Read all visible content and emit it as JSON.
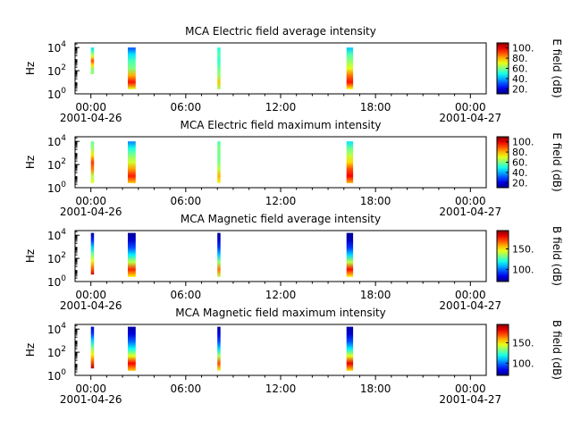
{
  "chart_data": [
    {
      "type": "heatmap",
      "title": "MCA  Electric field average intensity",
      "ylabel": "Hz",
      "colorbar_label": "E field (dB)",
      "colorbar_ticks": [
        "20.",
        "40.",
        "60.",
        "80.",
        "100."
      ],
      "colorbar_range": [
        10,
        110
      ],
      "y_scale": "log",
      "y_ticks": [
        {
          "base": "10",
          "exp": "0"
        },
        {
          "base": "10",
          "exp": "2"
        },
        {
          "base": "10",
          "exp": "4"
        }
      ],
      "ylim_exp": [
        0,
        4.4
      ],
      "x_ticks": [
        "00:00",
        "06:00",
        "12:00",
        "18:00",
        "00:00"
      ],
      "x_dates": [
        "2001-04-26",
        "2001-04-27"
      ],
      "xlim_hours": [
        -1,
        25
      ],
      "segments": [
        {
          "start": "00:00",
          "end": "00:05",
          "ymin_exp": 1.7,
          "ymax_exp": 4.0,
          "profile": [
            62,
            60,
            75,
            90,
            70,
            55,
            45
          ]
        },
        {
          "start": "02:20",
          "end": "02:50",
          "ymin_exp": 0.4,
          "ymax_exp": 4.0,
          "profile": [
            70,
            96,
            80,
            60,
            55,
            45,
            30
          ]
        },
        {
          "start": "08:00",
          "end": "08:10",
          "ymin_exp": 0.4,
          "ymax_exp": 4.0,
          "profile": [
            62,
            78,
            62,
            58,
            52,
            55,
            50
          ]
        },
        {
          "start": "16:10",
          "end": "16:35",
          "ymin_exp": 0.4,
          "ymax_exp": 4.0,
          "profile": [
            72,
            96,
            86,
            70,
            62,
            55,
            42
          ]
        }
      ]
    },
    {
      "type": "heatmap",
      "title": "MCA  Electric field maximum intensity",
      "ylabel": "Hz",
      "colorbar_label": "E field (dB)",
      "colorbar_ticks": [
        "20.",
        "40.",
        "60.",
        "80.",
        "100."
      ],
      "colorbar_range": [
        10,
        110
      ],
      "y_scale": "log",
      "y_ticks": [
        {
          "base": "10",
          "exp": "0"
        },
        {
          "base": "10",
          "exp": "2"
        },
        {
          "base": "10",
          "exp": "4"
        }
      ],
      "ylim_exp": [
        0,
        4.4
      ],
      "x_ticks": [
        "00:00",
        "06:00",
        "12:00",
        "18:00",
        "00:00"
      ],
      "x_dates": [
        "2001-04-26",
        "2001-04-27"
      ],
      "xlim_hours": [
        -1,
        25
      ],
      "segments": [
        {
          "start": "00:00",
          "end": "00:05",
          "ymin_exp": 0.4,
          "ymax_exp": 4.0,
          "profile": [
            70,
            65,
            85,
            92,
            75,
            62,
            58
          ]
        },
        {
          "start": "02:20",
          "end": "02:50",
          "ymin_exp": 0.4,
          "ymax_exp": 4.0,
          "profile": [
            78,
            95,
            82,
            68,
            60,
            50,
            35
          ]
        },
        {
          "start": "08:00",
          "end": "08:10",
          "ymin_exp": 0.4,
          "ymax_exp": 4.0,
          "profile": [
            70,
            80,
            66,
            60,
            58,
            60,
            55
          ]
        },
        {
          "start": "16:10",
          "end": "16:35",
          "ymin_exp": 0.4,
          "ymax_exp": 4.0,
          "profile": [
            80,
            98,
            90,
            76,
            66,
            58,
            45
          ]
        }
      ]
    },
    {
      "type": "heatmap",
      "title": "MCA  Magnetic field average intensity",
      "ylabel": "Hz",
      "colorbar_label": "B field (dB)",
      "colorbar_ticks": [
        "100.",
        "150."
      ],
      "colorbar_range": [
        70,
        195
      ],
      "y_scale": "log",
      "y_ticks": [
        {
          "base": "10",
          "exp": "0"
        },
        {
          "base": "10",
          "exp": "2"
        },
        {
          "base": "10",
          "exp": "4"
        }
      ],
      "ylim_exp": [
        0,
        4.4
      ],
      "x_ticks": [
        "00:00",
        "06:00",
        "12:00",
        "18:00",
        "00:00"
      ],
      "x_dates": [
        "2001-04-26",
        "2001-04-27"
      ],
      "xlim_hours": [
        -1,
        25
      ],
      "segments": [
        {
          "start": "00:00",
          "end": "00:05",
          "ymin_exp": 0.6,
          "ymax_exp": 4.2,
          "profile": [
            185,
            165,
            145,
            130,
            110,
            90,
            75
          ]
        },
        {
          "start": "02:20",
          "end": "02:50",
          "ymin_exp": 0.4,
          "ymax_exp": 4.2,
          "profile": [
            150,
            175,
            140,
            115,
            95,
            80,
            72
          ]
        },
        {
          "start": "08:00",
          "end": "08:10",
          "ymin_exp": 0.4,
          "ymax_exp": 4.2,
          "profile": [
            140,
            165,
            135,
            110,
            92,
            80,
            72
          ]
        },
        {
          "start": "16:10",
          "end": "16:35",
          "ymin_exp": 0.4,
          "ymax_exp": 4.2,
          "profile": [
            150,
            178,
            140,
            112,
            92,
            78,
            72
          ]
        }
      ]
    },
    {
      "type": "heatmap",
      "title": "MCA  Magnetic field maximum intensity",
      "ylabel": "Hz",
      "colorbar_label": "B field (dB)",
      "colorbar_ticks": [
        "100.",
        "150."
      ],
      "colorbar_range": [
        70,
        195
      ],
      "y_scale": "log",
      "y_ticks": [
        {
          "base": "10",
          "exp": "0"
        },
        {
          "base": "10",
          "exp": "2"
        },
        {
          "base": "10",
          "exp": "4"
        }
      ],
      "ylim_exp": [
        0,
        4.4
      ],
      "x_ticks": [
        "00:00",
        "06:00",
        "12:00",
        "18:00",
        "00:00"
      ],
      "x_dates": [
        "2001-04-26",
        "2001-04-27"
      ],
      "xlim_hours": [
        -1,
        25
      ],
      "segments": [
        {
          "start": "00:00",
          "end": "00:05",
          "ymin_exp": 0.6,
          "ymax_exp": 4.2,
          "profile": [
            188,
            168,
            150,
            132,
            112,
            92,
            78
          ]
        },
        {
          "start": "02:20",
          "end": "02:50",
          "ymin_exp": 0.4,
          "ymax_exp": 4.2,
          "profile": [
            155,
            180,
            145,
            118,
            98,
            82,
            74
          ]
        },
        {
          "start": "08:00",
          "end": "08:10",
          "ymin_exp": 0.4,
          "ymax_exp": 4.2,
          "profile": [
            145,
            170,
            138,
            112,
            94,
            82,
            74
          ]
        },
        {
          "start": "16:10",
          "end": "16:35",
          "ymin_exp": 0.4,
          "ymax_exp": 4.2,
          "profile": [
            152,
            182,
            145,
            115,
            95,
            80,
            74
          ]
        }
      ]
    }
  ]
}
